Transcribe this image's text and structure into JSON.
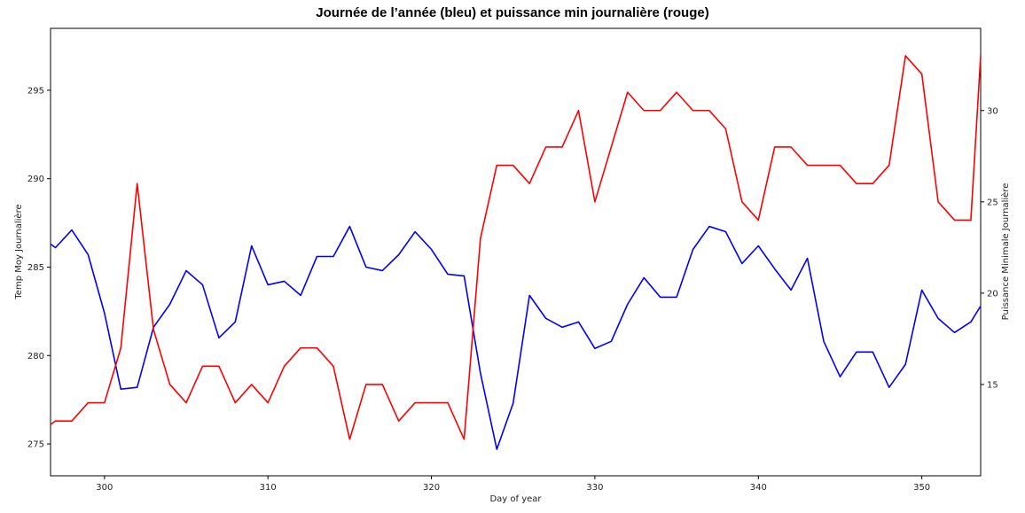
{
  "chart_data": {
    "type": "line",
    "title": "Journée de l’année (bleu) et puissance min journalière (rouge)",
    "xlabel": "Day of year",
    "ylabel_left": "Temp Moy Journalière",
    "ylabel_right": "Puissance Minimale Journalière",
    "xlim": [
      296.7,
      353.6
    ],
    "ylim_left": [
      273.2,
      298.5
    ],
    "ylim_right": [
      10.0,
      34.5
    ],
    "xticks": [
      300,
      310,
      320,
      330,
      340,
      350
    ],
    "yticks_left": [
      275,
      280,
      285,
      290,
      295
    ],
    "yticks_right": [
      15,
      20,
      25,
      30
    ],
    "grid": false,
    "series": [
      {
        "axis": "left",
        "color": "#0000ff",
        "x": [
          296.7,
          297,
          298,
          299,
          300,
          301,
          302,
          303,
          304,
          305,
          306,
          307,
          308,
          309,
          310,
          311,
          312,
          313,
          314,
          315,
          316,
          317,
          318,
          319,
          320,
          321,
          322,
          323,
          324,
          325,
          326,
          327,
          328,
          329,
          330,
          331,
          332,
          333,
          334,
          335,
          336,
          337,
          338,
          339,
          340,
          341,
          342,
          343,
          344,
          345,
          346,
          347,
          348,
          349,
          350,
          351,
          352,
          353,
          353.6
        ],
        "y": [
          286.3,
          286.1,
          287.1,
          285.7,
          282.4,
          278.1,
          278.2,
          281.6,
          282.9,
          284.8,
          284.0,
          281.0,
          281.9,
          286.2,
          284.0,
          284.2,
          283.4,
          285.6,
          285.6,
          287.3,
          285.0,
          284.8,
          285.7,
          287.0,
          286.0,
          284.6,
          284.5,
          279.0,
          274.7,
          277.3,
          283.4,
          282.1,
          281.6,
          281.9,
          280.4,
          280.8,
          282.9,
          284.4,
          283.3,
          283.3,
          286.0,
          287.3,
          287.0,
          285.2,
          286.2,
          284.9,
          283.7,
          285.5,
          280.8,
          278.8,
          280.2,
          280.2,
          278.2,
          279.5,
          283.7,
          282.1,
          281.3,
          281.9,
          282.8
        ]
      },
      {
        "axis": "right",
        "color": "#ff0000",
        "x": [
          296.7,
          297,
          298,
          299,
          300,
          301,
          302,
          303,
          304,
          305,
          306,
          307,
          308,
          309,
          310,
          311,
          312,
          313,
          314,
          315,
          316,
          317,
          318,
          319,
          320,
          321,
          322,
          323,
          324,
          325,
          326,
          327,
          328,
          329,
          330,
          331,
          332,
          333,
          334,
          335,
          336,
          337,
          338,
          339,
          340,
          341,
          342,
          343,
          344,
          345,
          346,
          347,
          348,
          349,
          350,
          351,
          352,
          353,
          353.6
        ],
        "y": [
          12.8,
          13,
          13,
          14,
          14,
          17,
          26,
          18,
          15,
          14,
          16,
          16,
          14,
          15,
          14,
          16,
          17,
          17,
          16,
          12,
          15,
          15,
          13,
          14,
          14,
          14,
          12,
          23,
          27,
          27,
          26,
          28,
          28,
          30,
          25,
          28,
          31,
          30,
          30,
          31,
          30,
          30,
          29,
          25,
          24,
          28,
          28,
          27,
          27,
          27,
          26,
          26,
          27,
          33,
          32,
          25,
          24,
          24,
          33
        ]
      }
    ]
  }
}
